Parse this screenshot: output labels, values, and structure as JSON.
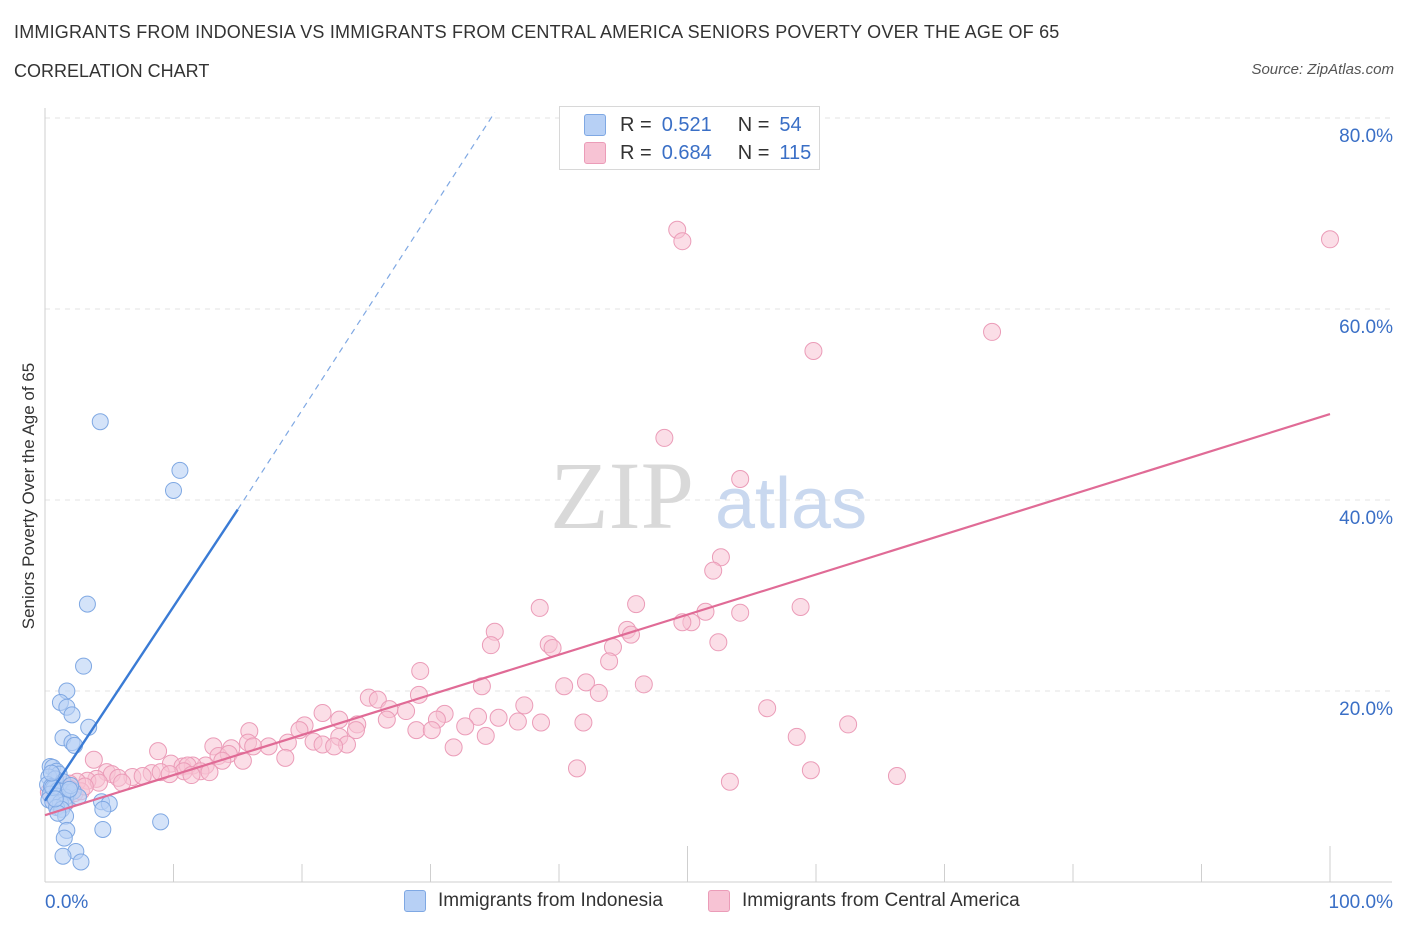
{
  "title": "IMMIGRANTS FROM INDONESIA VS IMMIGRANTS FROM CENTRAL AMERICA SENIORS POVERTY OVER THE AGE OF 65",
  "subtitle": "CORRELATION CHART",
  "source": "Source: ZipAtlas.com",
  "watermark": {
    "zip": "ZIP",
    "atlas": "atlas"
  },
  "colors": {
    "blue": "#3a7bd5",
    "blue_fill": "#b7d0f5",
    "pink": "#e06b96",
    "pink_fill": "#f7c3d4",
    "axis_text": "#3a6fc6",
    "grid": "#e3e3e3"
  },
  "legend": {
    "rows": [
      {
        "r_label": "R =",
        "r_value": "0.521",
        "n_label": "N =",
        "n_value": "54"
      },
      {
        "r_label": "R =",
        "r_value": "0.684",
        "n_label": "N =",
        "n_value": "115"
      }
    ]
  },
  "bottom_legend": [
    "Immigrants from Indonesia",
    "Immigrants from Central America"
  ],
  "chart_data": {
    "type": "scatter",
    "title": "IMMIGRANTS FROM INDONESIA VS IMMIGRANTS FROM CENTRAL AMERICA SENIORS POVERTY OVER THE AGE OF 65",
    "ylabel": "Seniors Poverty Over the Age of 65",
    "xlabel": "",
    "xlim": [
      0,
      100
    ],
    "ylim": [
      0,
      80
    ],
    "x_tick_labels": [
      "0.0%",
      "100.0%"
    ],
    "y_tick_labels": [
      "20.0%",
      "40.0%",
      "60.0%",
      "80.0%"
    ],
    "y_ticks": [
      20,
      40,
      60,
      80
    ],
    "grid": true,
    "series": [
      {
        "name": "Immigrants from Indonesia",
        "R": 0.521,
        "N": 54,
        "trend": {
          "x0": 0,
          "y0": 8.5,
          "x1": 15,
          "y1": 39,
          "dashed_to": [
            35,
            80.6
          ]
        },
        "points": [
          [
            4.3,
            48.2
          ],
          [
            10.5,
            43.1
          ],
          [
            10,
            41
          ],
          [
            3.3,
            29.1
          ],
          [
            3,
            22.6
          ],
          [
            1.7,
            20
          ],
          [
            1.2,
            18.8
          ],
          [
            1.7,
            18.3
          ],
          [
            2.1,
            17.5
          ],
          [
            3.4,
            16.2
          ],
          [
            1.4,
            15.1
          ],
          [
            2.1,
            14.6
          ],
          [
            2.3,
            14.3
          ],
          [
            0.4,
            12.1
          ],
          [
            0.6,
            12
          ],
          [
            0.9,
            11.6
          ],
          [
            1.1,
            11.3
          ],
          [
            0.3,
            11
          ],
          [
            0.8,
            10.8
          ],
          [
            1.4,
            10.5
          ],
          [
            0.2,
            10.2
          ],
          [
            0.5,
            10
          ],
          [
            0.7,
            9.8
          ],
          [
            1.0,
            9.6
          ],
          [
            1.3,
            9.5
          ],
          [
            1.8,
            9.4
          ],
          [
            2.2,
            9.5
          ],
          [
            0.4,
            9.2
          ],
          [
            0.9,
            9.0
          ],
          [
            1.6,
            8.9
          ],
          [
            2.6,
            8.9
          ],
          [
            0.3,
            8.6
          ],
          [
            0.6,
            8.4
          ],
          [
            1.2,
            8.3
          ],
          [
            1.5,
            8.1
          ],
          [
            4.4,
            8.4
          ],
          [
            5,
            8.2
          ],
          [
            0.9,
            7.8
          ],
          [
            1.3,
            7.6
          ],
          [
            4.5,
            7.6
          ],
          [
            1.6,
            6.9
          ],
          [
            1.0,
            7.2
          ],
          [
            9,
            6.3
          ],
          [
            4.5,
            5.5
          ],
          [
            1.7,
            5.4
          ],
          [
            1.5,
            4.6
          ],
          [
            2.4,
            3.2
          ],
          [
            1.4,
            2.7
          ],
          [
            2.8,
            2.1
          ],
          [
            0.6,
            9.9
          ],
          [
            2.0,
            10.1
          ],
          [
            0.8,
            8.7
          ],
          [
            1.9,
            9.7
          ],
          [
            0.5,
            11.4
          ]
        ]
      },
      {
        "name": "Immigrants from Central America",
        "R": 0.684,
        "N": 115,
        "trend": {
          "x0": 0,
          "y0": 7,
          "x1": 100,
          "y1": 49
        },
        "points": [
          [
            49.2,
            68.3
          ],
          [
            49.6,
            67.1
          ],
          [
            100,
            67.3
          ],
          [
            73.7,
            57.6
          ],
          [
            59.8,
            55.6
          ],
          [
            48.2,
            46.5
          ],
          [
            54.1,
            42.2
          ],
          [
            52.6,
            34
          ],
          [
            52,
            32.6
          ],
          [
            46,
            29.1
          ],
          [
            38.5,
            28.7
          ],
          [
            58.8,
            28.8
          ],
          [
            51.4,
            28.3
          ],
          [
            54.1,
            28.2
          ],
          [
            50.3,
            27.2
          ],
          [
            49.6,
            27.2
          ],
          [
            35,
            26.2
          ],
          [
            45.3,
            26.4
          ],
          [
            45.6,
            25.9
          ],
          [
            34.7,
            24.8
          ],
          [
            39.2,
            24.9
          ],
          [
            39.5,
            24.5
          ],
          [
            44.2,
            24.6
          ],
          [
            52.4,
            25.1
          ],
          [
            43.9,
            23.1
          ],
          [
            29.2,
            22.1
          ],
          [
            42.1,
            20.9
          ],
          [
            46.6,
            20.7
          ],
          [
            34,
            20.5
          ],
          [
            40.4,
            20.5
          ],
          [
            43.1,
            19.8
          ],
          [
            29.1,
            19.6
          ],
          [
            25.2,
            19.3
          ],
          [
            25.9,
            19.1
          ],
          [
            37.3,
            18.5
          ],
          [
            26.8,
            18.1
          ],
          [
            28.1,
            17.9
          ],
          [
            21.6,
            17.7
          ],
          [
            31.1,
            17.6
          ],
          [
            33.7,
            17.3
          ],
          [
            22.9,
            17
          ],
          [
            35.3,
            17.2
          ],
          [
            30.5,
            17
          ],
          [
            36.8,
            16.8
          ],
          [
            41.9,
            16.7
          ],
          [
            38.6,
            16.7
          ],
          [
            26.6,
            17
          ],
          [
            24.3,
            16.5
          ],
          [
            32.7,
            16.3
          ],
          [
            20.2,
            16.4
          ],
          [
            19.8,
            15.9
          ],
          [
            24.2,
            15.9
          ],
          [
            15.9,
            15.8
          ],
          [
            28.9,
            15.9
          ],
          [
            30.1,
            15.9
          ],
          [
            34.3,
            15.3
          ],
          [
            22.9,
            15.2
          ],
          [
            20.9,
            14.7
          ],
          [
            15.8,
            14.6
          ],
          [
            21.6,
            14.4
          ],
          [
            17.4,
            14.2
          ],
          [
            18.9,
            14.6
          ],
          [
            23.5,
            14.4
          ],
          [
            13.1,
            14.2
          ],
          [
            14.5,
            14.0
          ],
          [
            16.2,
            14.2
          ],
          [
            31.8,
            14.1
          ],
          [
            22.5,
            14.2
          ],
          [
            8.8,
            13.7
          ],
          [
            13.5,
            13.2
          ],
          [
            14.3,
            13.4
          ],
          [
            15.4,
            12.7
          ],
          [
            18.7,
            13
          ],
          [
            9.8,
            12.4
          ],
          [
            10.7,
            12.1
          ],
          [
            12.5,
            12.2
          ],
          [
            11.5,
            12.2
          ],
          [
            11.1,
            12.2
          ],
          [
            13.8,
            12.7
          ],
          [
            4.8,
            11.5
          ],
          [
            8.3,
            11.4
          ],
          [
            10.8,
            11.6
          ],
          [
            12.1,
            11.6
          ],
          [
            3.8,
            12.8
          ],
          [
            5.2,
            11.3
          ],
          [
            6.8,
            11.0
          ],
          [
            9.0,
            11.5
          ],
          [
            9.7,
            11.3
          ],
          [
            11.4,
            11.2
          ],
          [
            12.8,
            11.5
          ],
          [
            4.0,
            10.8
          ],
          [
            3.3,
            10.6
          ],
          [
            5.7,
            10.9
          ],
          [
            2.5,
            10.5
          ],
          [
            1.9,
            10.3
          ],
          [
            4.2,
            10.4
          ],
          [
            6.0,
            10.4
          ],
          [
            7.6,
            11.1
          ],
          [
            1.4,
            9.8
          ],
          [
            2.3,
            9.3
          ],
          [
            1.0,
            9.3
          ],
          [
            0.5,
            9.0
          ],
          [
            1.9,
            9.8
          ],
          [
            56.2,
            18.2
          ],
          [
            58.5,
            15.2
          ],
          [
            62.5,
            16.5
          ],
          [
            59.6,
            11.7
          ],
          [
            53.3,
            10.5
          ],
          [
            66.3,
            11.1
          ],
          [
            41.4,
            11.9
          ],
          [
            0.8,
            8.6
          ],
          [
            1.6,
            8.3
          ],
          [
            2.8,
            9.5
          ],
          [
            0.3,
            9.4
          ],
          [
            3.1,
            10.0
          ]
        ]
      }
    ]
  }
}
